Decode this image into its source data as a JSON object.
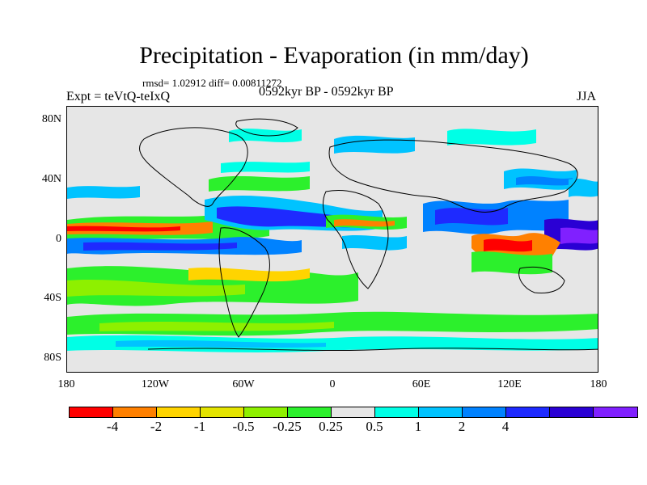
{
  "title": "Precipitation - Evaporation (in mm/day)",
  "stats": "rmsd= 1.02912 diff= 0.00811272",
  "left_label": "Expt = teVtQ-teIxQ",
  "center_label": "0592kyr BP - 0592kyr BP",
  "right_label": "JJA",
  "lat_ticks": [
    "80N",
    "40N",
    "0",
    "40S",
    "80S"
  ],
  "lon_ticks": [
    "180",
    "120W",
    "60W",
    "0",
    "60E",
    "120E",
    "180"
  ],
  "colorbar": {
    "colors": [
      "#ff0000",
      "#ff8000",
      "#ffd400",
      "#e4e400",
      "#8ef000",
      "#2cf02c",
      "#e6e6e6",
      "#00ffe6",
      "#00c3ff",
      "#0082ff",
      "#1e2aff",
      "#2a00d4",
      "#8020ff"
    ],
    "labels": [
      "-4",
      "-2",
      "-1",
      "-0.5",
      "-0.25",
      "0.25",
      "0.5",
      "1",
      "2",
      "4"
    ]
  },
  "background_color": "#e6e6e6"
}
